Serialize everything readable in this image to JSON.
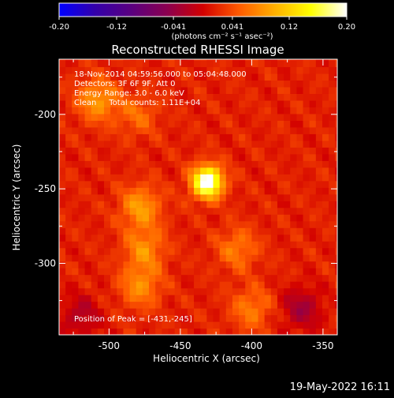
{
  "colorbar": {
    "tick_labels": [
      "-0.20",
      "-0.12",
      "-0.041",
      "0.041",
      "0.12",
      "0.20"
    ],
    "tick_values": [
      -0.2,
      -0.12,
      -0.041,
      0.041,
      0.12,
      0.2
    ],
    "range": [
      -0.2,
      0.2
    ],
    "units_label": "(photons cm⁻² s⁻¹ asec⁻²)",
    "colormap": [
      "#0000ff",
      "#3300aa",
      "#5a0080",
      "#8a0050",
      "#d20000",
      "#ff5a00",
      "#ffb000",
      "#ffff00",
      "#ffffff"
    ]
  },
  "chart_data": {
    "type": "heatmap",
    "title": "Reconstructed RHESSI Image",
    "xlabel": "Heliocentric X (arcsec)",
    "ylabel": "Heliocentric Y (arcsec)",
    "xlim": [
      -535,
      -340
    ],
    "ylim": [
      -348,
      -163
    ],
    "x_ticks": [
      -500,
      -450,
      -400,
      -350
    ],
    "x_tick_labels": [
      "-500",
      "-450",
      "-400",
      "-350"
    ],
    "y_ticks": [
      -200,
      -250,
      -300
    ],
    "y_tick_labels": [
      "-200",
      "-250",
      "-300"
    ],
    "peak": {
      "x": -431,
      "y": -245,
      "value": 0.2
    },
    "secondary_sources": [
      {
        "x": -508,
        "y": -190,
        "value": 0.07
      },
      {
        "x": -478,
        "y": -262,
        "value": 0.07
      },
      {
        "x": -475,
        "y": -290,
        "value": 0.06
      },
      {
        "x": -478,
        "y": -315,
        "value": 0.06
      },
      {
        "x": -410,
        "y": -290,
        "value": 0.05
      },
      {
        "x": -400,
        "y": -330,
        "value": 0.05
      },
      {
        "x": -480,
        "y": -200,
        "value": 0.04
      }
    ],
    "negative_regions": [
      {
        "x": -520,
        "y": -335,
        "value": -0.04
      },
      {
        "x": -365,
        "y": -330,
        "value": -0.05
      }
    ],
    "annotations": [
      "18-Nov-2014 04:59:56.000 to 05:04:48.000",
      "Detectors: 3F 6F 9F, Att 0",
      "Energy Range: 3.0 - 6.0 keV",
      "Clean     Total counts: 1.11E+04"
    ],
    "peak_label": "Position of Peak = [-431,-245]"
  },
  "footer": {
    "date": "19-May-2022 16:11"
  }
}
